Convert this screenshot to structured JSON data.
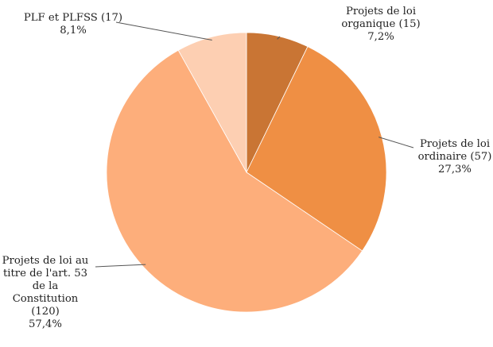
{
  "chart_data": {
    "type": "pie",
    "title": "",
    "slices": [
      {
        "label_lines": [
          "Projets de loi",
          "organique (15)"
        ],
        "count": 15,
        "percent_label": "7,2%",
        "value": 7.2,
        "color": "#c97534"
      },
      {
        "label_lines": [
          "Projets de loi",
          "ordinaire (57)"
        ],
        "count": 57,
        "percent_label": "27,3%",
        "value": 27.3,
        "color": "#ef8f44"
      },
      {
        "label_lines": [
          "Projets de loi au",
          "titre de l'art. 53",
          "de la",
          "Constitution",
          "(120)"
        ],
        "count": 120,
        "percent_label": "57,4%",
        "value": 57.4,
        "color": "#fdae7b"
      },
      {
        "label_lines": [
          "PLF et PLFSS (17)"
        ],
        "count": 17,
        "percent_label": "8,1%",
        "value": 8.1,
        "color": "#fdcfb2"
      }
    ],
    "start_angle": "12 o'clock",
    "direction": "clockwise",
    "legend": "none (leader-line labels)"
  }
}
